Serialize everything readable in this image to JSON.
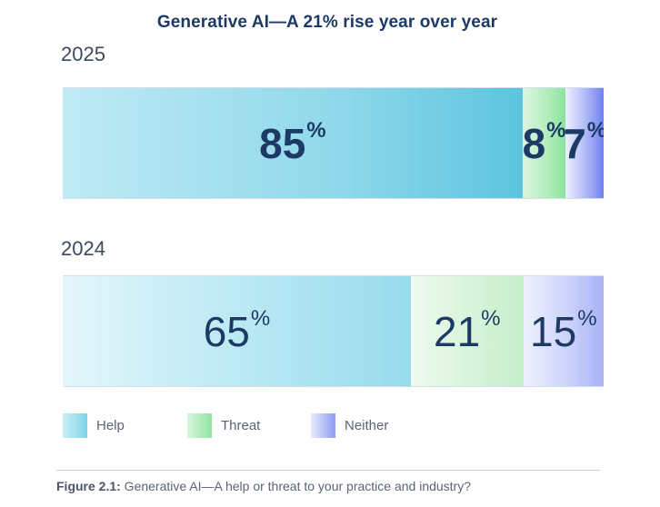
{
  "chart_data": {
    "type": "bar",
    "orientation": "horizontal-stacked",
    "title": "Generative AI—A 21% rise year over year",
    "categories": [
      "2025",
      "2024"
    ],
    "series": [
      {
        "name": "Help",
        "values": [
          85,
          65
        ]
      },
      {
        "name": "Threat",
        "values": [
          8,
          21
        ]
      },
      {
        "name": "Neither",
        "values": [
          7,
          15
        ]
      }
    ],
    "unit": "%",
    "xlim": [
      0,
      100
    ],
    "grid": false,
    "legend_position": "bottom-left"
  },
  "caption": {
    "label": "Figure 2.1:",
    "text": " Generative AI—A help or threat to your practice and industry?"
  }
}
